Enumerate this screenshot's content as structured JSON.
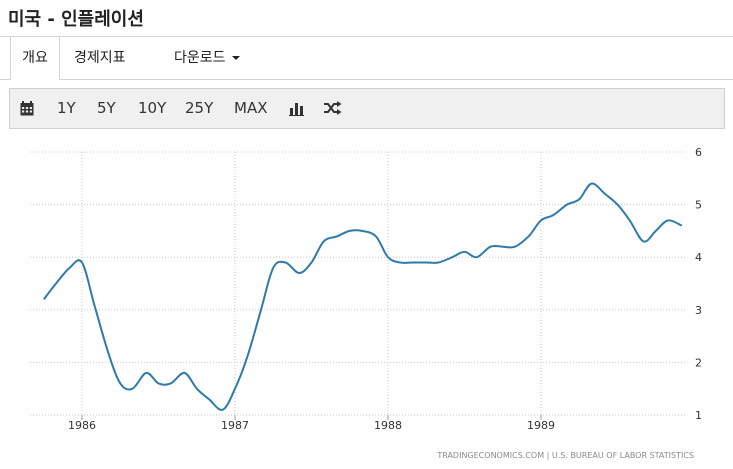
{
  "page": {
    "title": "미국 - 인플레이션"
  },
  "tabs": [
    {
      "label": "개요",
      "active": true
    },
    {
      "label": "경제지표"
    },
    {
      "label": "다운로드"
    }
  ],
  "toolbar": {
    "ranges": [
      "1Y",
      "5Y",
      "10Y",
      "25Y",
      "MAX"
    ],
    "icons": [
      "calendar-icon",
      "bar-chart-icon",
      "shuffle-icon"
    ]
  },
  "chart_data": {
    "type": "line",
    "title": "",
    "xlabel": "",
    "ylabel": "",
    "line_color": "#2e7bab",
    "grid": true,
    "ylim": [
      1,
      6
    ],
    "yticks": [
      1,
      2,
      3,
      4,
      5,
      6
    ],
    "xticks": [
      "1986",
      "1987",
      "1988",
      "1989"
    ],
    "x": [
      1985.75,
      1985.83,
      1985.92,
      1986.0,
      1986.08,
      1986.17,
      1986.25,
      1986.33,
      1986.42,
      1986.5,
      1986.58,
      1986.67,
      1986.75,
      1986.83,
      1986.92,
      1987.0,
      1987.08,
      1987.17,
      1987.25,
      1987.33,
      1987.42,
      1987.5,
      1987.58,
      1987.67,
      1987.75,
      1987.83,
      1987.92,
      1988.0,
      1988.08,
      1988.17,
      1988.25,
      1988.33,
      1988.42,
      1988.5,
      1988.58,
      1988.67,
      1988.75,
      1988.83,
      1988.92,
      1989.0,
      1989.08,
      1989.17,
      1989.25,
      1989.33,
      1989.42,
      1989.5,
      1989.58,
      1989.67,
      1989.75,
      1989.83,
      1989.92
    ],
    "values": [
      3.2,
      3.5,
      3.8,
      3.9,
      3.1,
      2.2,
      1.6,
      1.5,
      1.8,
      1.6,
      1.6,
      1.8,
      1.5,
      1.3,
      1.1,
      1.5,
      2.1,
      3.0,
      3.8,
      3.9,
      3.7,
      3.9,
      4.3,
      4.4,
      4.5,
      4.5,
      4.4,
      4.0,
      3.9,
      3.9,
      3.9,
      3.9,
      4.0,
      4.1,
      4.0,
      4.2,
      4.2,
      4.2,
      4.4,
      4.7,
      4.8,
      5.0,
      5.1,
      5.4,
      5.2,
      5.0,
      4.7,
      4.3,
      4.5,
      4.7,
      4.6
    ]
  },
  "footer": {
    "source": "TRADINGECONOMICS.COM  |  U.S. BUREAU OF LABOR STATISTICS"
  }
}
